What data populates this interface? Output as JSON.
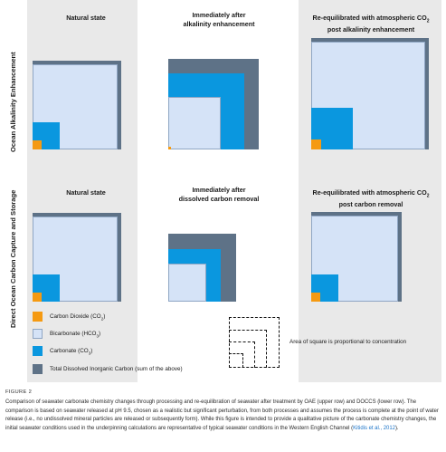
{
  "row_labels": {
    "top": "Ocean Alkalinity Enhancement",
    "bottom": "Direct Ocean Carbon Capture and Storage"
  },
  "titles": {
    "oae_natural": "Natural state",
    "oae_after_line1": "Immediately after",
    "oae_after_line2": "alkalinity enhancement",
    "oae_reeq_line1_pre": "Re-equilibrated with atmospheric CO",
    "oae_reeq_line1_sub": "2",
    "oae_reeq_line2": "post alkalinity enhancement",
    "doc_natural": "Natural state",
    "doc_after_line1": "Immediately after",
    "doc_after_line2": "dissolved carbon removal",
    "doc_reeq_line1_pre": "Re-equilibrated with atmospheric CO",
    "doc_reeq_line1_sub": "2",
    "doc_reeq_line2": "post carbon removal"
  },
  "legend": {
    "co2_pre": "Carbon Dioxide (CO",
    "co2_sub": "2",
    "co2_post": ")",
    "bic_pre": "Bicarbonate (HCO",
    "bic_sub": "3",
    "bic_post": ")",
    "carb_pre": "Carbonate (CO",
    "carb_sub": "3",
    "carb_post": ")",
    "tdic": "Total Dissolved Inorganic Carbon (sum of the above)",
    "scale_note": "Area of square is proportional to concentration"
  },
  "colors": {
    "co2": "#f59a12",
    "bicarbonate": "#d5e3f7",
    "carbonate": "#0a97df",
    "tdic": "#5e7287",
    "panel_bg": "#e9e9e9"
  },
  "caption": {
    "label": "FIGURE 2",
    "text_before_ref": "Comparison of seawater carbonate chemistry changes through processing and re-equilibration of seawater after treatment by OAE (upper row) and DOCCS (lower row). The comparison is based on seawater released at pH 9.5, chosen as a realistic but significant perturbation, from both processes and assumes the process is complete at the point of water release (i.e., no undissolved mineral particles are released or subsequently form). While this figure is intended to provide a qualitative picture of the carbonate chemistry changes, the initial seawater conditions used in the underpinning calculations are representative of typical seawater conditions in the Western English Channel (",
    "ref": "Kitidis et al., 2012",
    "text_after_ref": ")."
  }
}
